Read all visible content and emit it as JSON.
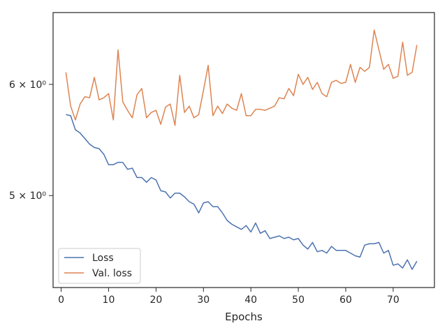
{
  "chart_data": {
    "type": "line",
    "title": "",
    "xlabel": "Epochs",
    "ylabel": "",
    "yscale": "log",
    "xlim": [
      -1.7,
      78.7
    ],
    "ylim": [
      4.3,
      6.75
    ],
    "x_ticks": [
      0,
      10,
      20,
      30,
      40,
      50,
      60,
      70
    ],
    "y_ticks": [
      {
        "value": 5.0,
        "label": "5 × 10⁰"
      },
      {
        "value": 6.0,
        "label": "6 × 10⁰"
      }
    ],
    "grid": false,
    "legend": "lower-left",
    "x": [
      1,
      2,
      3,
      4,
      5,
      6,
      7,
      8,
      9,
      10,
      11,
      12,
      13,
      14,
      15,
      16,
      17,
      18,
      19,
      20,
      21,
      22,
      23,
      24,
      25,
      26,
      27,
      28,
      29,
      30,
      31,
      32,
      33,
      34,
      35,
      36,
      37,
      38,
      39,
      40,
      41,
      42,
      43,
      44,
      45,
      46,
      47,
      48,
      49,
      50,
      51,
      52,
      53,
      54,
      55,
      56,
      57,
      58,
      59,
      60,
      61,
      62,
      63,
      64,
      65,
      66,
      67,
      68,
      69,
      70,
      71,
      72,
      73,
      74,
      75
    ],
    "series": [
      {
        "name": "Loss",
        "color": "#4c72b0",
        "values": [
          5.71,
          5.7,
          5.57,
          5.54,
          5.49,
          5.44,
          5.41,
          5.4,
          5.35,
          5.26,
          5.26,
          5.28,
          5.28,
          5.22,
          5.23,
          5.15,
          5.15,
          5.11,
          5.15,
          5.13,
          5.04,
          5.03,
          4.98,
          5.02,
          5.02,
          4.99,
          4.95,
          4.93,
          4.86,
          4.94,
          4.95,
          4.91,
          4.91,
          4.86,
          4.8,
          4.77,
          4.75,
          4.73,
          4.76,
          4.71,
          4.78,
          4.7,
          4.72,
          4.66,
          4.67,
          4.68,
          4.66,
          4.67,
          4.65,
          4.66,
          4.61,
          4.58,
          4.63,
          4.56,
          4.57,
          4.55,
          4.6,
          4.57,
          4.57,
          4.57,
          4.55,
          4.53,
          4.52,
          4.61,
          4.62,
          4.62,
          4.63,
          4.55,
          4.57,
          4.46,
          4.47,
          4.44,
          4.5,
          4.43,
          4.49
        ]
      },
      {
        "name": "Val. loss",
        "color": "#dd8452",
        "values": [
          6.12,
          5.79,
          5.66,
          5.81,
          5.88,
          5.87,
          6.07,
          5.85,
          5.87,
          5.91,
          5.66,
          6.35,
          5.83,
          5.75,
          5.68,
          5.9,
          5.96,
          5.68,
          5.73,
          5.75,
          5.62,
          5.78,
          5.81,
          5.61,
          6.09,
          5.73,
          5.79,
          5.68,
          5.71,
          5.94,
          6.19,
          5.7,
          5.79,
          5.72,
          5.81,
          5.77,
          5.75,
          5.91,
          5.7,
          5.7,
          5.76,
          5.76,
          5.75,
          5.77,
          5.79,
          5.87,
          5.86,
          5.96,
          5.89,
          6.1,
          6.0,
          6.07,
          5.95,
          6.02,
          5.91,
          5.88,
          6.02,
          6.04,
          6.01,
          6.02,
          6.2,
          6.02,
          6.17,
          6.13,
          6.17,
          6.56,
          6.35,
          6.15,
          6.2,
          6.06,
          6.08,
          6.43,
          6.09,
          6.12,
          6.4
        ]
      }
    ]
  }
}
